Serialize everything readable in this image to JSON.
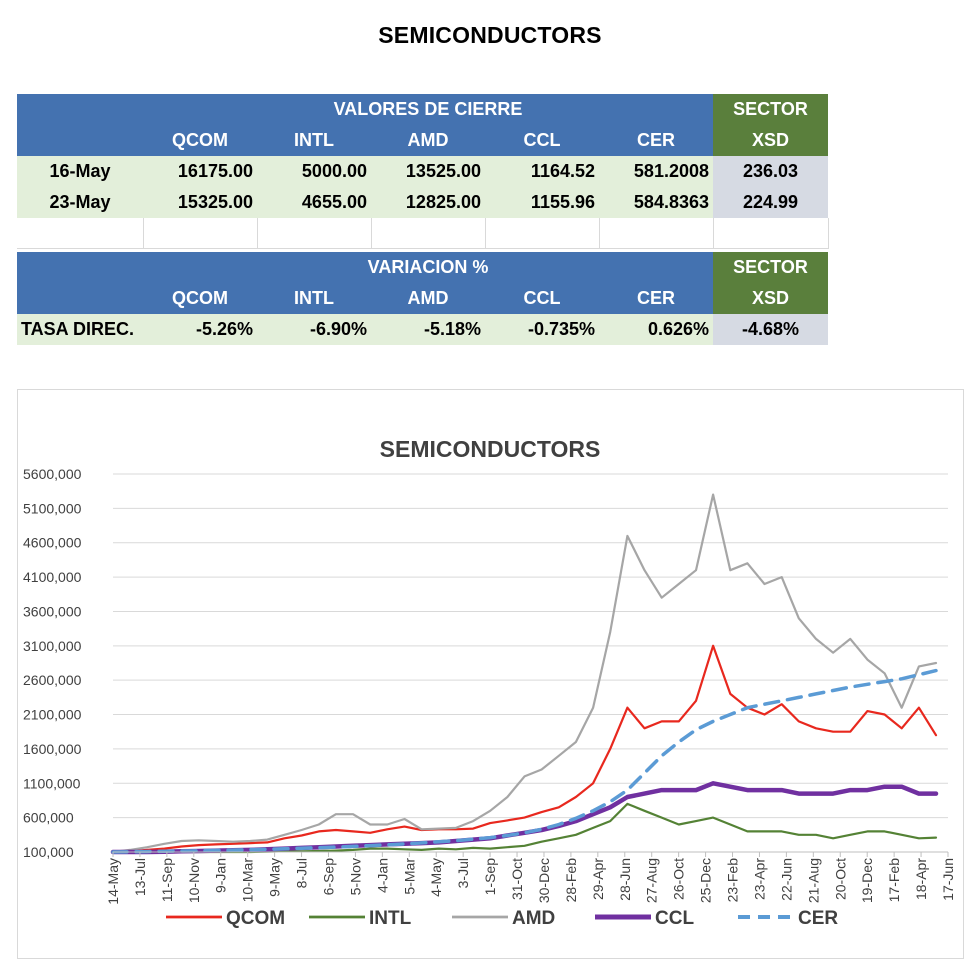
{
  "page": {
    "title": "SEMICONDUCTORS"
  },
  "closing_table": {
    "group_header": "VALORES DE CIERRE",
    "sector_header": "SECTOR",
    "columns": [
      "QCOM",
      "INTL",
      "AMD",
      "CCL",
      "CER"
    ],
    "sector_column": "XSD",
    "rows": [
      {
        "label": "16-May",
        "values": [
          "16175.00",
          "5000.00",
          "13525.00",
          "1164.52",
          "581.2008"
        ],
        "sector": "236.03"
      },
      {
        "label": "23-May",
        "values": [
          "15325.00",
          "4655.00",
          "12825.00",
          "1155.96",
          "584.8363"
        ],
        "sector": "224.99"
      }
    ]
  },
  "variation_table": {
    "group_header": "VARIACION %",
    "sector_header": "SECTOR",
    "columns": [
      "QCOM",
      "INTL",
      "AMD",
      "CCL",
      "CER"
    ],
    "sector_column": "XSD",
    "row": {
      "label": "TASA DIREC.",
      "values": [
        "-5.26%",
        "-6.90%",
        "-5.18%",
        "-0.735%",
        "0.626%"
      ],
      "sector": "-4.68%"
    }
  },
  "chart_data": {
    "type": "line",
    "title": "SEMICONDUCTORS",
    "y_ticks": [
      "100,000",
      "600,000",
      "1100,000",
      "1600,000",
      "2100,000",
      "2600,000",
      "3100,000",
      "3600,000",
      "4100,000",
      "4600,000",
      "5100,000",
      "5600,000"
    ],
    "ylim": [
      100,
      5600
    ],
    "x_ticks": [
      "14-May",
      "13-Jul",
      "11-Sep",
      "10-Nov",
      "9-Jan",
      "10-Mar",
      "9-May",
      "8-Jul",
      "6-Sep",
      "5-Nov",
      "4-Jan",
      "5-Mar",
      "4-May",
      "3-Jul",
      "1-Sep",
      "31-Oct",
      "30-Dec",
      "28-Feb",
      "29-Apr",
      "28-Jun",
      "27-Aug",
      "26-Oct",
      "25-Dec",
      "23-Feb",
      "23-Apr",
      "22-Jun",
      "21-Aug",
      "20-Oct",
      "19-Dec",
      "17-Feb",
      "18-Apr",
      "17-Jun"
    ],
    "grid": true,
    "legend_position": "bottom",
    "series": [
      {
        "name": "QCOM",
        "color": "#e8281e",
        "style": "solid",
        "values": [
          100,
          110,
          130,
          150,
          180,
          200,
          210,
          220,
          230,
          240,
          300,
          340,
          400,
          420,
          400,
          380,
          430,
          470,
          420,
          430,
          430,
          440,
          520,
          560,
          600,
          680,
          750,
          900,
          1100,
          1600,
          2200,
          1900,
          2000,
          2000,
          2300,
          3100,
          2400,
          2200,
          2100,
          2250,
          2000,
          1900,
          1850,
          1850,
          2150,
          2100,
          1900,
          2200,
          1800
        ]
      },
      {
        "name": "INTL",
        "color": "#548235",
        "style": "solid",
        "values": [
          100,
          100,
          100,
          105,
          100,
          100,
          100,
          100,
          100,
          105,
          110,
          110,
          115,
          120,
          130,
          150,
          150,
          140,
          130,
          150,
          140,
          160,
          150,
          170,
          190,
          250,
          300,
          350,
          450,
          550,
          800,
          700,
          600,
          500,
          550,
          600,
          500,
          400,
          400,
          400,
          350,
          350,
          300,
          350,
          400,
          400,
          350,
          300,
          310
        ]
      },
      {
        "name": "AMD",
        "color": "#a6a6a6",
        "style": "solid",
        "values": [
          100,
          130,
          170,
          220,
          260,
          270,
          260,
          250,
          260,
          280,
          350,
          420,
          500,
          650,
          650,
          500,
          500,
          580,
          430,
          440,
          450,
          550,
          700,
          900,
          1200,
          1300,
          1500,
          1700,
          2200,
          3300,
          4700,
          4200,
          3800,
          4000,
          4200,
          5300,
          4200,
          4300,
          4000,
          4100,
          3500,
          3200,
          3000,
          3200,
          2900,
          2700,
          2200,
          2800,
          2850
        ]
      },
      {
        "name": "CCL",
        "color": "#7030a0",
        "style": "bold",
        "values": [
          100,
          100,
          100,
          105,
          110,
          115,
          120,
          125,
          130,
          140,
          150,
          160,
          170,
          180,
          190,
          200,
          210,
          220,
          230,
          240,
          260,
          280,
          300,
          340,
          380,
          420,
          480,
          550,
          650,
          750,
          900,
          950,
          1000,
          1000,
          1000,
          1100,
          1050,
          1000,
          1000,
          1000,
          950,
          950,
          950,
          1000,
          1000,
          1050,
          1050,
          950,
          950
        ]
      },
      {
        "name": "CER",
        "color": "#5b9bd5",
        "style": "dashed",
        "values": [
          100,
          103,
          106,
          110,
          114,
          118,
          123,
          128,
          134,
          140,
          147,
          155,
          163,
          172,
          182,
          193,
          205,
          218,
          232,
          248,
          266,
          286,
          310,
          340,
          380,
          430,
          500,
          590,
          700,
          830,
          1000,
          1250,
          1500,
          1700,
          1880,
          2000,
          2100,
          2200,
          2250,
          2300,
          2350,
          2400,
          2450,
          2500,
          2540,
          2580,
          2620,
          2680,
          2740
        ]
      }
    ]
  }
}
